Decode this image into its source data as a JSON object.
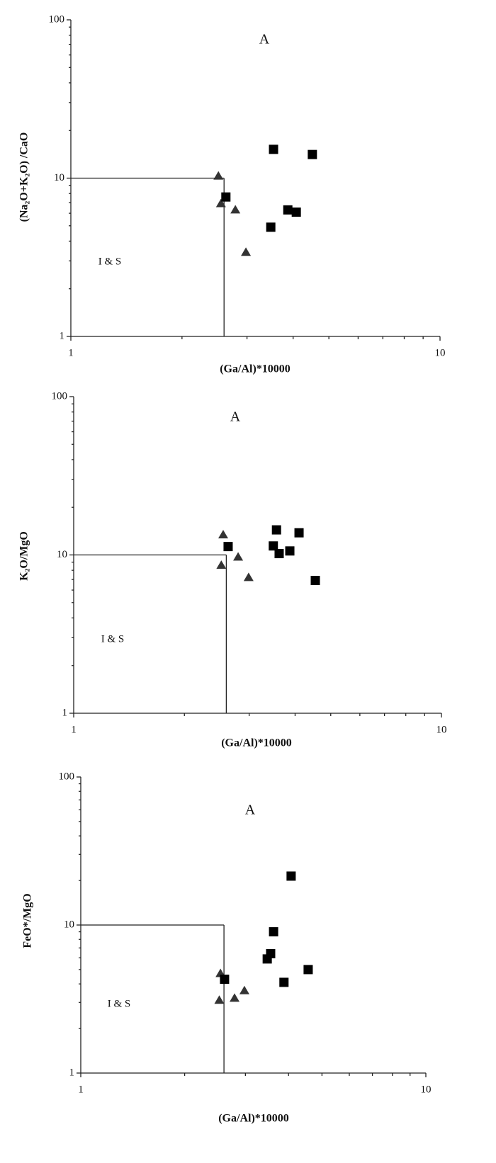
{
  "chart_data": [
    {
      "type": "scatter",
      "xlabel": "(Ga/Al)*10000",
      "ylabel": "(Na₂O+K₂O) /CaO",
      "xscale": "log",
      "yscale": "log",
      "xlim": [
        1,
        10
      ],
      "ylim": [
        1,
        100
      ],
      "xticks": [
        1,
        10
      ],
      "yticks": [
        1,
        10,
        100
      ],
      "xminorticks": [
        2,
        3,
        4,
        5,
        6,
        7,
        8,
        9
      ],
      "yminorticks": [
        2,
        3,
        4,
        5,
        6,
        7,
        8,
        9,
        20,
        30,
        40,
        50,
        60,
        70,
        80,
        90
      ],
      "boundary": {
        "x": 2.6,
        "y": 10
      },
      "annotations": [
        "A",
        "I & S"
      ],
      "series": [
        {
          "marker": "triangle",
          "color": "#333333",
          "x": [
            2.51,
            2.55,
            2.79,
            2.98
          ],
          "values": [
            10.3,
            6.9,
            6.3,
            3.4
          ]
        },
        {
          "marker": "square",
          "color": "#000000",
          "x": [
            3.54,
            4.51,
            2.63,
            3.87,
            4.08,
            3.48
          ],
          "values": [
            15.2,
            14.1,
            7.6,
            6.3,
            6.1,
            4.9
          ]
        }
      ]
    },
    {
      "type": "scatter",
      "xlabel": "(Ga/Al)*10000",
      "ylabel": "K₂O/MgO",
      "xscale": "log",
      "yscale": "log",
      "xlim": [
        1,
        10
      ],
      "ylim": [
        1,
        100
      ],
      "xticks": [
        1,
        10
      ],
      "yticks": [
        1,
        10,
        100
      ],
      "xminorticks": [
        2,
        3,
        4,
        5,
        6,
        7,
        8,
        9
      ],
      "yminorticks": [
        2,
        3,
        4,
        5,
        6,
        7,
        8,
        9,
        20,
        30,
        40,
        50,
        60,
        70,
        80,
        90
      ],
      "boundary": {
        "x": 2.6,
        "y": 10
      },
      "annotations": [
        "A",
        "I & S"
      ],
      "series": [
        {
          "marker": "triangle",
          "color": "#333333",
          "x": [
            2.55,
            2.52,
            2.8,
            2.99
          ],
          "values": [
            13.4,
            8.6,
            9.7,
            7.2
          ]
        },
        {
          "marker": "square",
          "color": "#000000",
          "x": [
            2.63,
            3.56,
            3.49,
            3.62,
            3.87,
            4.1,
            4.54
          ],
          "values": [
            11.3,
            14.4,
            11.4,
            10.2,
            10.6,
            13.8,
            6.9
          ]
        }
      ]
    },
    {
      "type": "scatter",
      "xlabel": "(Ga/Al)*10000",
      "ylabel": "FeO*/MgO",
      "xscale": "log",
      "yscale": "log",
      "xlim": [
        1,
        10
      ],
      "ylim": [
        1,
        100
      ],
      "xticks": [
        1,
        10
      ],
      "yticks": [
        1,
        10,
        100
      ],
      "xminorticks": [
        2,
        3,
        4,
        5,
        6,
        7,
        8,
        9
      ],
      "yminorticks": [
        2,
        3,
        4,
        5,
        6,
        7,
        8,
        9,
        20,
        30,
        40,
        50,
        60,
        70,
        80,
        90
      ],
      "boundary": {
        "x": 2.6,
        "y": 10
      },
      "annotations": [
        "A",
        "I & S"
      ],
      "series": [
        {
          "marker": "triangle",
          "color": "#333333",
          "x": [
            2.54,
            2.52,
            2.79,
            2.98
          ],
          "values": [
            4.7,
            3.1,
            3.2,
            3.6
          ]
        },
        {
          "marker": "square",
          "color": "#000000",
          "x": [
            2.61,
            4.07,
            3.62,
            3.55,
            3.47,
            3.88,
            4.56
          ],
          "values": [
            4.3,
            21.4,
            9.0,
            6.4,
            5.9,
            4.1,
            5.0
          ]
        }
      ]
    }
  ]
}
